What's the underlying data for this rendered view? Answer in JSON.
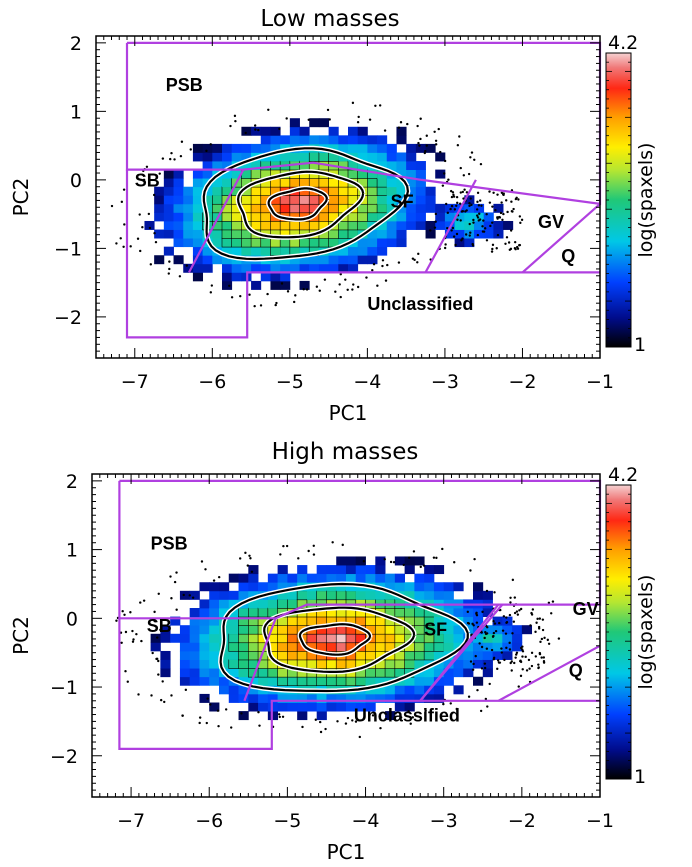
{
  "chart_data": [
    {
      "type": "heatmap",
      "title": "Low masses",
      "xlabel": "PC1",
      "ylabel": "PC2",
      "xlim": [
        -7.5,
        -1
      ],
      "ylim": [
        -2.6,
        2.1
      ],
      "xticks": [
        -7,
        -6,
        -5,
        -4,
        -3,
        -2,
        -1
      ],
      "yticks": [
        -2,
        -1,
        0,
        1,
        2
      ],
      "colorbar": {
        "label": "log(spaxels)",
        "min": 1,
        "max": 4.2
      },
      "density_peak": {
        "x": -4.9,
        "y": -0.35
      },
      "regions": [
        {
          "name": "PSB",
          "label_at": [
            -6.6,
            1.3
          ]
        },
        {
          "name": "SB",
          "label_at": [
            -7.0,
            -0.1
          ]
        },
        {
          "name": "SF",
          "label_at": [
            -3.7,
            -0.4
          ]
        },
        {
          "name": "GV",
          "label_at": [
            -1.8,
            -0.7
          ]
        },
        {
          "name": "Q",
          "label_at": [
            -1.5,
            -1.2
          ]
        },
        {
          "name": "Unclassified",
          "label_at": [
            -4.0,
            -1.9
          ]
        }
      ],
      "boundary_lines": [
        [
          [
            -7.1,
            2.0
          ],
          [
            -1.0,
            2.0
          ],
          [
            -1.0,
            -0.35
          ],
          [
            -3.3,
            0.0
          ],
          [
            -4.7,
            0.25
          ],
          [
            -5.6,
            0.15
          ],
          [
            -7.1,
            0.15
          ],
          [
            -7.1,
            2.0
          ]
        ],
        [
          [
            -7.1,
            0.15
          ],
          [
            -7.1,
            -2.3
          ],
          [
            -5.55,
            -2.3
          ],
          [
            -5.55,
            -1.35
          ],
          [
            -1.0,
            -1.35
          ]
        ],
        [
          [
            -5.6,
            0.15
          ],
          [
            -6.3,
            -1.35
          ]
        ],
        [
          [
            -2.6,
            0.0
          ],
          [
            -3.25,
            -1.35
          ]
        ],
        [
          [
            -1.0,
            -0.35
          ],
          [
            -2.0,
            -1.35
          ]
        ]
      ]
    },
    {
      "type": "heatmap",
      "title": "High masses",
      "xlabel": "PC1",
      "ylabel": "PC2",
      "xlim": [
        -7.5,
        -1
      ],
      "ylim": [
        -2.6,
        2.1
      ],
      "xticks": [
        -7,
        -6,
        -5,
        -4,
        -3,
        -2,
        -1
      ],
      "yticks": [
        -2,
        -1,
        0,
        1,
        2
      ],
      "colorbar": {
        "label": "log(spaxels)",
        "min": 1,
        "max": 4.2
      },
      "density_peak": {
        "x": -4.4,
        "y": -0.3
      },
      "regions": [
        {
          "name": "PSB",
          "label_at": [
            -6.75,
            1.0
          ]
        },
        {
          "name": "SB",
          "label_at": [
            -6.8,
            -0.2
          ]
        },
        {
          "name": "SF",
          "label_at": [
            -3.25,
            -0.25
          ]
        },
        {
          "name": "GV",
          "label_at": [
            -1.35,
            0.05
          ]
        },
        {
          "name": "Q",
          "label_at": [
            -1.4,
            -0.85
          ]
        },
        {
          "name": "Unclassified",
          "label_at": [
            -4.15,
            -1.5
          ]
        }
      ],
      "boundary_lines": [
        [
          [
            -7.15,
            2.0
          ],
          [
            -1.0,
            2.0
          ],
          [
            -1.0,
            0.2
          ],
          [
            -4.75,
            0.2
          ],
          [
            -5.15,
            0.0
          ],
          [
            -7.15,
            0.0
          ],
          [
            -7.15,
            2.0
          ]
        ],
        [
          [
            -7.15,
            0.0
          ],
          [
            -7.15,
            -1.9
          ],
          [
            -5.2,
            -1.9
          ],
          [
            -5.2,
            -1.2
          ],
          [
            -1.0,
            -1.2
          ]
        ],
        [
          [
            -5.15,
            0.0
          ],
          [
            -5.55,
            -1.2
          ]
        ],
        [
          [
            -2.3,
            0.2
          ],
          [
            -3.3,
            -1.2
          ]
        ],
        [
          [
            -2.25,
            0.2
          ],
          [
            -3.3,
            -1.2
          ]
        ],
        [
          [
            -1.0,
            -0.4
          ],
          [
            -2.3,
            -1.2
          ]
        ]
      ]
    }
  ]
}
